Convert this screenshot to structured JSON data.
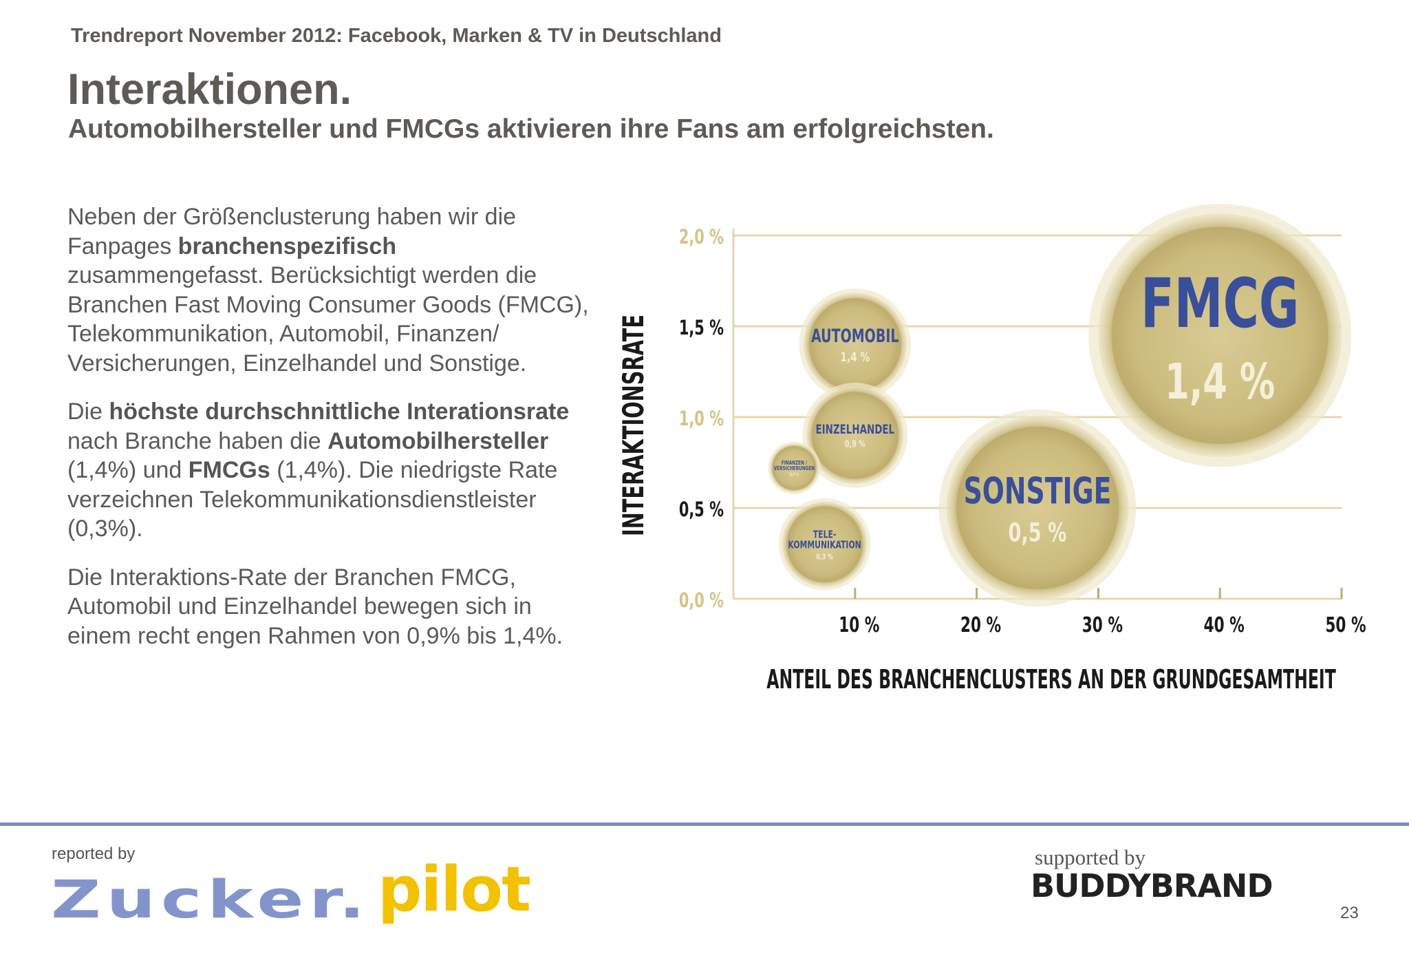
{
  "header": {
    "report_line": "Trendreport November 2012: Facebook, Marken & TV in Deutschland",
    "title": "Interaktionen.",
    "subtitle": "Automobilhersteller und FMCGs aktivieren ihre Fans am erfolgreichsten."
  },
  "text": {
    "p1_a": "Neben der Größenclusterung haben wir die Fanpages ",
    "p1_b": "branchenspezifisch",
    "p1_c": " zusammengefasst. Berücksichtigt werden die Branchen Fast Moving Consumer Goods (FMCG), Telekommunikation, Automobil, Finanzen/ Versicherungen, Einzelhandel und Sonstige.",
    "p2_a": "Die ",
    "p2_b": "höchste durchschnittliche Interationsrate",
    "p2_c": " nach Branche haben die ",
    "p2_d": "Automobilhersteller",
    "p2_e": " (1,4%) und ",
    "p2_f": "FMCGs",
    "p2_g": " (1,4%). Die niedrigste Rate verzeichnen Telekommunikationsdienstleister (0,3%).",
    "p3": "Die Interaktions-Rate der Branchen FMCG, Automobil und Einzelhandel bewegen sich in einem recht engen Rahmen von 0,9% bis 1,4%."
  },
  "chart_data": {
    "type": "scatter",
    "xlabel": "ANTEIL DES BRANCHENCLUSTERS AN DER GRUNDGESAMTHEIT",
    "ylabel": "INTERAKTIONSRATE",
    "xlim": [
      0,
      50
    ],
    "ylim": [
      0,
      2.0
    ],
    "x_ticks": [
      10,
      20,
      30,
      40,
      50
    ],
    "x_tick_labels": [
      "10 %",
      "20 %",
      "30 %",
      "40 %",
      "50 %"
    ],
    "y_ticks": [
      0,
      0.5,
      1.0,
      1.5,
      2.0
    ],
    "y_tick_labels": [
      "0,0 %",
      "0,5 %",
      "1,0 %",
      "1,5 %",
      "2,0 %"
    ],
    "grid": true,
    "bubble_color": "#c8b87a",
    "label_color": "#3a4f9a",
    "points": [
      {
        "name": "FMCG",
        "value_label": "1,4 %",
        "x": 40,
        "y": 1.45,
        "size": 20
      },
      {
        "name": "SONSTIGE",
        "value_label": "0,5 %",
        "x": 25,
        "y": 0.5,
        "size": 15
      },
      {
        "name": "AUTOMOBIL",
        "value_label": "1,4 %",
        "x": 10,
        "y": 1.4,
        "size": 8.5
      },
      {
        "name": "EINZELHANDEL",
        "value_label": "0,9 %",
        "x": 10,
        "y": 0.9,
        "size": 8
      },
      {
        "name": "FINANZEN / VERSICHERUNGEN",
        "value_label": "0,7 %",
        "x": 5,
        "y": 0.72,
        "size": 4
      },
      {
        "name": "TELE-KOMMUNIKATION",
        "value_label": "0,3 %",
        "x": 7.5,
        "y": 0.3,
        "size": 7
      }
    ]
  },
  "footer": {
    "reported_by": "reported by",
    "logo_left": "Zucker.",
    "logo_pilot": "pilot",
    "supported_by": "supported by",
    "logo_right": "BUDDYBRAND",
    "page_number": "23"
  }
}
